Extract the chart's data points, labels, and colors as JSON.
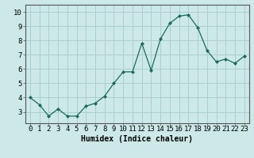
{
  "x": [
    0,
    1,
    2,
    3,
    4,
    5,
    6,
    7,
    8,
    9,
    10,
    11,
    12,
    13,
    14,
    15,
    16,
    17,
    18,
    19,
    20,
    21,
    22,
    23
  ],
  "y": [
    4.0,
    3.5,
    2.7,
    3.2,
    2.7,
    2.7,
    3.4,
    3.6,
    4.1,
    5.0,
    5.8,
    5.8,
    7.8,
    5.9,
    8.1,
    9.2,
    9.7,
    9.8,
    8.9,
    7.3,
    6.5,
    6.7,
    6.4,
    6.9
  ],
  "xlabel": "Humidex (Indice chaleur)",
  "xlim": [
    -0.5,
    23.5
  ],
  "ylim": [
    2.2,
    10.5
  ],
  "yticks": [
    3,
    4,
    5,
    6,
    7,
    8,
    9,
    10
  ],
  "xticks": [
    0,
    1,
    2,
    3,
    4,
    5,
    6,
    7,
    8,
    9,
    10,
    11,
    12,
    13,
    14,
    15,
    16,
    17,
    18,
    19,
    20,
    21,
    22,
    23
  ],
  "xtick_labels": [
    "0",
    "1",
    "2",
    "3",
    "4",
    "5",
    "6",
    "7",
    "8",
    "9",
    "10",
    "11",
    "12",
    "13",
    "14",
    "15",
    "16",
    "17",
    "18",
    "19",
    "20",
    "21",
    "22",
    "23"
  ],
  "line_color": "#1a6b5a",
  "marker_color": "#1a6b5a",
  "bg_color": "#cce8e8",
  "grid_color": "#aacfcf",
  "xlabel_fontsize": 7,
  "tick_fontsize": 6.5
}
